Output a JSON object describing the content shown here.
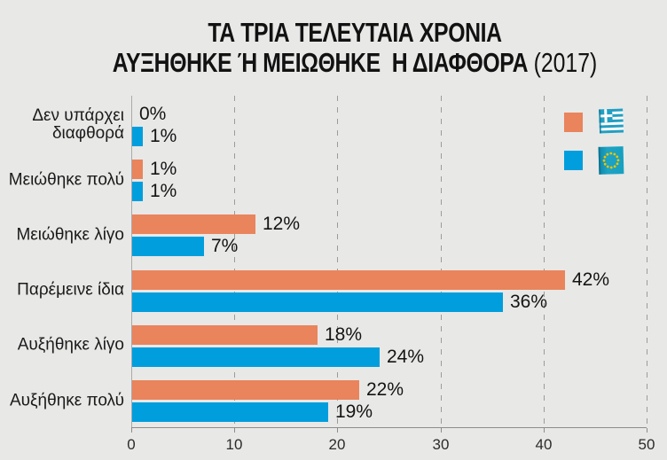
{
  "title": {
    "line1": "ΤΑ ΤΡΙΑ ΤΕΛΕΥΤΑΙΑ ΧΡΟΝΙΑ",
    "line2_main": "ΑΥΞΗΘΗΚΕ Ή ΜΕΙΩΘΗΚΕ  Η ΔΙΑΦΘΟΡΑ ",
    "year": "(2017)"
  },
  "legend": {
    "rows": [
      {
        "series": "greece",
        "flag_icon": "greece-flag-icon",
        "swatch_color": "#e9845c"
      },
      {
        "series": "eu",
        "flag_icon": "eu-flag-icon",
        "swatch_color": "#009edc"
      }
    ]
  },
  "chart_data": {
    "type": "bar",
    "orientation": "horizontal",
    "categories": [
      "Δεν υπάρχει\nδιαφθορά",
      "Μειώθηκε πολύ",
      "Μειώθηκε λίγο",
      "Παρέμεινε ίδια",
      "Αυξήθηκε λίγο",
      "Αυξήθηκε πολύ"
    ],
    "series": [
      {
        "name": "greece",
        "color": "#e9845c",
        "values": [
          0,
          1,
          12,
          42,
          18,
          22
        ],
        "labels": [
          "0%",
          "1%",
          "12%",
          "42%",
          "18%",
          "22%"
        ]
      },
      {
        "name": "eu",
        "color": "#009edc",
        "values": [
          1,
          1,
          7,
          36,
          24,
          19
        ],
        "labels": [
          "1%",
          "1%",
          "7%",
          "36%",
          "24%",
          "19%"
        ]
      }
    ],
    "xlim": [
      0,
      50
    ],
    "x_ticks": [
      0,
      10,
      20,
      30,
      40,
      50
    ],
    "grid": "vertical-dashed",
    "legend_position": "top-right",
    "colors": {
      "background": "#e8e8e7",
      "gridline": "#9b9b9b",
      "axis": "#8c8c8c",
      "text": "#1b1b1b"
    }
  }
}
